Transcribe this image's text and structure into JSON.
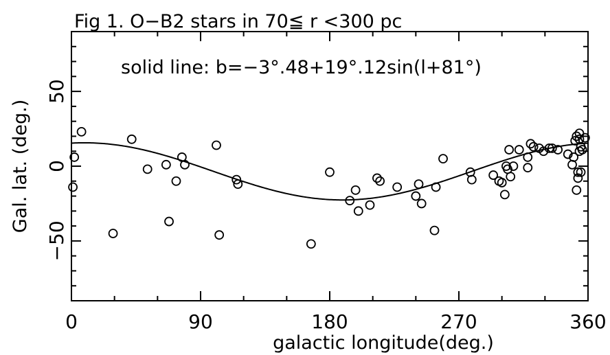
{
  "chart_data": {
    "type": "scatter",
    "title": "Fig 1. O−B2 stars in 70≦ r <300 pc",
    "annotation": "solid line: b=−3°.48+19°.12sin(l+81°)",
    "xlabel": "galactic longitude(deg.)",
    "ylabel": "Gal. lat. (deg.)",
    "xlim": [
      0,
      360
    ],
    "ylim": [
      -90,
      90
    ],
    "xticks": [
      0,
      90,
      180,
      270,
      360
    ],
    "xtick_labels": [
      "0",
      "90",
      "180",
      "270",
      "360"
    ],
    "yticks": [
      -50,
      0,
      50
    ],
    "ytick_labels": [
      "−50",
      "0",
      "50"
    ],
    "grid": false,
    "marker": "open-circle",
    "fit": {
      "type": "sinusoid",
      "offset": -3.48,
      "amplitude": 19.12,
      "phase_deg": 81
    },
    "points": [
      [
        1,
        -14
      ],
      [
        2,
        6
      ],
      [
        7,
        23
      ],
      [
        29,
        -45
      ],
      [
        42,
        18
      ],
      [
        53,
        -2
      ],
      [
        66,
        1
      ],
      [
        68,
        -37
      ],
      [
        73,
        -10
      ],
      [
        77,
        6
      ],
      [
        79,
        1
      ],
      [
        101,
        14
      ],
      [
        103,
        -46
      ],
      [
        115,
        -9
      ],
      [
        116,
        -12
      ],
      [
        167,
        -52
      ],
      [
        180,
        -4
      ],
      [
        194,
        -23
      ],
      [
        198,
        -16
      ],
      [
        200,
        -30
      ],
      [
        208,
        -26
      ],
      [
        213,
        -8
      ],
      [
        215,
        -10
      ],
      [
        227,
        -14
      ],
      [
        240,
        -20
      ],
      [
        242,
        -12
      ],
      [
        244,
        -25
      ],
      [
        253,
        -43
      ],
      [
        254,
        -14
      ],
      [
        259,
        5
      ],
      [
        278,
        -4
      ],
      [
        279,
        -9
      ],
      [
        294,
        -6
      ],
      [
        298,
        -10
      ],
      [
        300,
        -11
      ],
      [
        302,
        -19
      ],
      [
        303,
        0
      ],
      [
        304,
        -2
      ],
      [
        305,
        11
      ],
      [
        306,
        -7
      ],
      [
        308,
        0
      ],
      [
        312,
        11
      ],
      [
        318,
        -1
      ],
      [
        318,
        6
      ],
      [
        320,
        15
      ],
      [
        322,
        13
      ],
      [
        326,
        12
      ],
      [
        329,
        10
      ],
      [
        333,
        12
      ],
      [
        335,
        12
      ],
      [
        339,
        11
      ],
      [
        346,
        8
      ],
      [
        349,
        1
      ],
      [
        350,
        6
      ],
      [
        351,
        17
      ],
      [
        352,
        20
      ],
      [
        353,
        -8
      ],
      [
        353,
        -4
      ],
      [
        354,
        22
      ],
      [
        354,
        10
      ],
      [
        354,
        18
      ],
      [
        355,
        13
      ],
      [
        355,
        -4
      ],
      [
        356,
        11
      ],
      [
        358,
        19
      ],
      [
        352,
        -16
      ]
    ]
  }
}
